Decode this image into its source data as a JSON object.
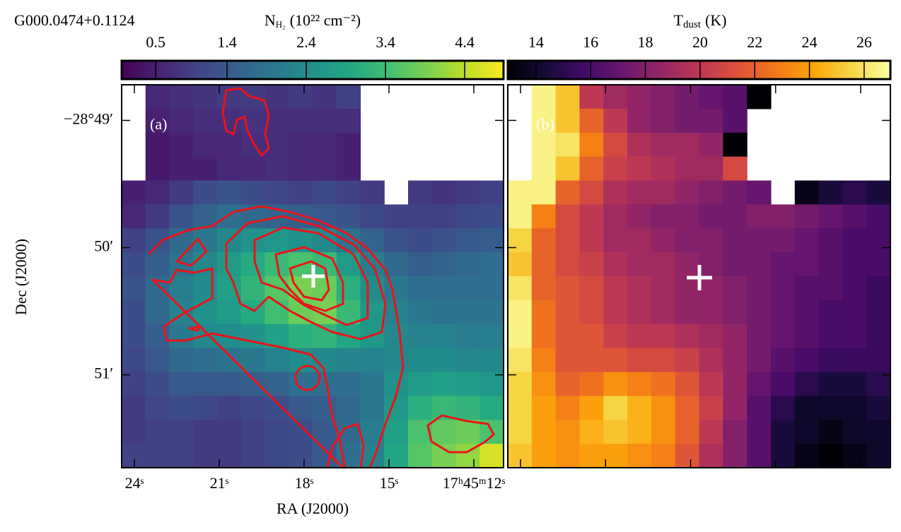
{
  "chart_data": [
    {
      "type": "heatmap",
      "source": "G000.0474+0.1124",
      "panel_label": "(a)",
      "xlabel": "RA (J2000)",
      "ylabel": "Dec (J2000)",
      "colormap": "viridis",
      "xlim": [
        24.45,
        10.95
      ],
      "ylim": [
        48.72,
        51.73
      ],
      "xticks": [
        {
          "value": 24,
          "label": "24ˢ"
        },
        {
          "value": 21,
          "label": "21ˢ"
        },
        {
          "value": 18,
          "label": "18ˢ"
        },
        {
          "value": 15,
          "label": "15ˢ"
        },
        {
          "value": 12,
          "label": "17ʰ45ᵐ12ˢ"
        }
      ],
      "yticks": [
        {
          "value": 49,
          "label": "−28°49′"
        },
        {
          "value": 50,
          "label": "50′"
        },
        {
          "value": 51,
          "label": "51′"
        }
      ],
      "colorbar": {
        "label": "N",
        "label_subscript": "H₂",
        "label_unit": "(10²² cm⁻²)",
        "lim": [
          0.07,
          4.89
        ],
        "ticks": [
          0.5,
          1.4,
          2.4,
          3.4,
          4.4
        ]
      },
      "values": [
        [
          null,
          0.6,
          0.7,
          0.8,
          0.9,
          0.9,
          0.8,
          0.9,
          0.8,
          1.0,
          null,
          null,
          null,
          null,
          null,
          null
        ],
        [
          null,
          0.5,
          0.6,
          0.7,
          0.7,
          0.8,
          0.7,
          0.7,
          0.7,
          0.7,
          null,
          null,
          null,
          null,
          null,
          null
        ],
        [
          null,
          0.4,
          0.5,
          0.6,
          0.6,
          0.7,
          0.7,
          0.6,
          0.6,
          0.5,
          null,
          null,
          null,
          null,
          null,
          null
        ],
        [
          null,
          0.4,
          0.5,
          0.5,
          0.6,
          0.6,
          0.7,
          0.6,
          0.6,
          0.5,
          null,
          null,
          null,
          null,
          null,
          null
        ],
        [
          0.5,
          0.6,
          0.9,
          1.2,
          1.3,
          1.2,
          1.1,
          1.0,
          1.1,
          1.0,
          0.9,
          null,
          0.9,
          0.8,
          0.9,
          1.0
        ],
        [
          0.6,
          0.9,
          1.3,
          1.6,
          1.8,
          1.7,
          1.6,
          1.5,
          1.4,
          1.3,
          1.1,
          1.0,
          1.0,
          1.0,
          1.1,
          1.2
        ],
        [
          1.0,
          1.3,
          1.7,
          2.0,
          2.3,
          2.5,
          2.6,
          2.5,
          2.3,
          1.9,
          1.6,
          1.3,
          1.2,
          1.3,
          1.4,
          1.5
        ],
        [
          1.2,
          1.5,
          1.9,
          2.3,
          2.7,
          3.0,
          3.3,
          3.5,
          3.3,
          2.7,
          2.1,
          1.7,
          1.5,
          1.6,
          1.7,
          1.8
        ],
        [
          1.3,
          1.7,
          2.1,
          2.4,
          2.8,
          3.2,
          3.6,
          3.9,
          3.8,
          3.1,
          2.4,
          2.0,
          1.8,
          1.8,
          1.8,
          1.8
        ],
        [
          1.2,
          1.7,
          2.2,
          2.5,
          2.7,
          3.0,
          3.4,
          3.8,
          3.9,
          3.3,
          2.6,
          2.2,
          2.0,
          1.9,
          1.9,
          1.9
        ],
        [
          1.2,
          1.5,
          2.0,
          2.3,
          2.4,
          2.5,
          2.8,
          3.1,
          3.2,
          2.9,
          2.6,
          2.3,
          2.2,
          2.2,
          2.1,
          2.1
        ],
        [
          1.1,
          1.4,
          1.7,
          1.8,
          1.9,
          2.0,
          2.2,
          2.4,
          2.3,
          2.2,
          2.2,
          2.3,
          2.4,
          2.4,
          2.3,
          2.3
        ],
        [
          1.0,
          1.2,
          1.4,
          1.4,
          1.4,
          1.5,
          1.6,
          1.8,
          1.8,
          1.8,
          2.0,
          2.5,
          2.7,
          2.8,
          2.7,
          2.6
        ],
        [
          0.9,
          1.1,
          1.2,
          1.1,
          1.0,
          1.1,
          1.2,
          1.4,
          1.5,
          1.7,
          2.0,
          2.6,
          3.1,
          3.3,
          3.2,
          3.0
        ],
        [
          0.9,
          1.0,
          1.0,
          0.9,
          0.9,
          1.0,
          1.1,
          1.2,
          1.4,
          1.7,
          2.1,
          2.8,
          3.5,
          3.7,
          3.8,
          3.5
        ],
        [
          1.0,
          1.0,
          1.0,
          0.9,
          0.9,
          1.0,
          1.1,
          1.2,
          1.4,
          1.8,
          2.2,
          2.9,
          3.6,
          3.9,
          4.1,
          4.6
        ]
      ]
    },
    {
      "type": "heatmap",
      "panel_label": "(b)",
      "colormap": "inferno",
      "xlim": [
        24.45,
        10.95
      ],
      "ylim": [
        48.72,
        51.73
      ],
      "xticks": [
        24,
        21,
        18,
        15,
        12
      ],
      "yticks": [
        49,
        50,
        51
      ],
      "colorbar": {
        "label": "T",
        "label_subscript": "dust",
        "label_unit": "(K)",
        "lim": [
          12.97,
          26.96
        ],
        "ticks": [
          14,
          16,
          18,
          20,
          22,
          24,
          26
        ]
      },
      "values": [
        [
          null,
          26.5,
          25,
          20,
          19,
          18.5,
          18,
          17.5,
          17,
          16.5,
          13,
          null,
          null,
          null,
          null,
          null
        ],
        [
          null,
          26.5,
          25,
          22,
          20,
          18.5,
          18,
          17.5,
          17.5,
          16.5,
          null,
          null,
          null,
          null,
          null,
          null
        ],
        [
          null,
          26.5,
          26,
          23,
          21,
          19.5,
          19,
          19,
          18.5,
          13,
          null,
          null,
          null,
          null,
          null,
          null
        ],
        [
          null,
          26.5,
          25,
          22,
          20.5,
          20,
          19.5,
          19,
          19,
          21,
          null,
          null,
          null,
          null,
          null,
          null
        ],
        [
          26.5,
          26.5,
          22,
          21,
          19.5,
          19,
          19,
          18.5,
          18,
          17.5,
          17,
          null,
          13.5,
          14.5,
          15,
          14.5
        ],
        [
          26.5,
          23,
          21,
          20,
          19,
          18.5,
          18,
          18,
          17.5,
          17.5,
          18,
          18,
          17.5,
          17,
          16.5,
          16
        ],
        [
          25.5,
          22,
          21,
          20,
          19,
          19,
          18.5,
          18,
          18,
          17.5,
          17.5,
          17.5,
          17,
          16.5,
          16,
          16
        ],
        [
          25,
          22,
          21,
          20.5,
          19.5,
          19,
          19,
          18.5,
          18,
          17.5,
          17.5,
          17,
          17,
          16.5,
          16,
          16
        ],
        [
          26,
          22,
          21.5,
          21,
          20,
          19.5,
          19,
          18.5,
          18.5,
          18,
          17.5,
          17,
          16.5,
          16.5,
          16,
          15.5
        ],
        [
          26.5,
          22.5,
          21.5,
          21,
          20,
          19.5,
          19,
          18.5,
          18.5,
          18,
          17.5,
          17,
          16.5,
          16,
          16,
          15.5
        ],
        [
          26.5,
          22.5,
          21.5,
          21.5,
          20.5,
          20,
          20,
          19.5,
          19,
          18.5,
          17.5,
          17,
          16.5,
          16,
          16,
          15.5
        ],
        [
          26,
          23,
          21.5,
          21.5,
          21.5,
          21,
          21,
          20.5,
          19.5,
          18.5,
          17.5,
          16.5,
          16,
          15.5,
          15.5,
          15.5
        ],
        [
          25.5,
          23.5,
          22,
          22.5,
          23.5,
          23,
          22.5,
          21.5,
          20,
          18.5,
          17,
          16,
          15,
          14.5,
          14.5,
          15
        ],
        [
          25.5,
          24,
          23,
          24,
          25.5,
          24.5,
          23.5,
          22,
          20.5,
          18.5,
          16.5,
          15,
          14,
          14,
          14,
          14.5
        ],
        [
          25.5,
          24,
          23.5,
          24.5,
          25,
          24.5,
          23.5,
          22,
          20,
          18,
          16.5,
          14.5,
          14,
          13.5,
          14,
          14
        ],
        [
          25,
          24,
          23.5,
          24,
          24,
          23.5,
          23,
          21.5,
          19.5,
          18,
          16.5,
          14.5,
          13.5,
          13,
          13.5,
          14
        ]
      ]
    }
  ]
}
